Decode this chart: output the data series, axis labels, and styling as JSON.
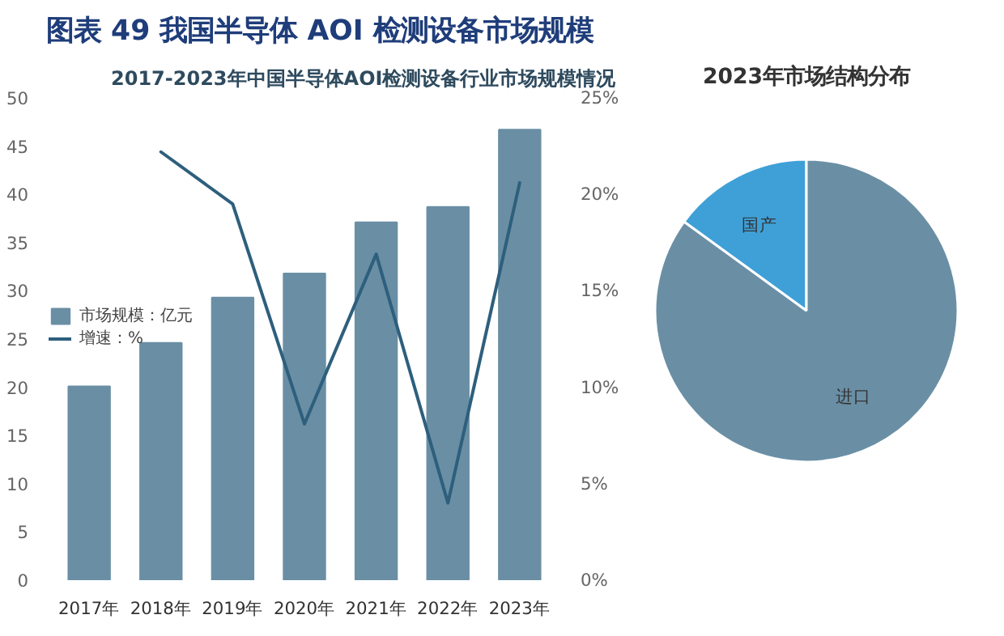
{
  "chart_data": [
    {
      "type": "bar",
      "title": "图表 49 我国半导体 AOI 检测设备市场规模",
      "subtitle": "2017-2023年中国半导体AOI检测设备行业市场规模情况",
      "categories": [
        "2017年",
        "2018年",
        "2019年",
        "2020年",
        "2021年",
        "2022年",
        "2023年"
      ],
      "series": [
        {
          "name": "市场规模：亿元",
          "type": "bar",
          "color": "#6a8fa5",
          "values": [
            20.1,
            24.6,
            29.3,
            31.8,
            37.1,
            38.7,
            46.7
          ]
        },
        {
          "name": "增速：%",
          "type": "line",
          "axis": "y2",
          "color": "#2e5f7d",
          "values": [
            null,
            22.2,
            19.5,
            8.1,
            16.9,
            4.0,
            20.6
          ]
        }
      ],
      "ylim": [
        0,
        50
      ],
      "yticks": [
        0,
        5,
        10,
        15,
        20,
        25,
        30,
        35,
        40,
        45,
        50
      ],
      "y2lim": [
        0,
        25
      ],
      "y2ticks": [
        {
          "value": 0,
          "label": "0%"
        },
        {
          "value": 5,
          "label": "5%"
        },
        {
          "value": 10,
          "label": "10%"
        },
        {
          "value": 15,
          "label": "15%"
        },
        {
          "value": 20,
          "label": "20%"
        },
        {
          "value": 25,
          "label": "25%"
        }
      ],
      "legend": "top left",
      "grid": false
    },
    {
      "type": "pie",
      "title": "2023年市场结构分布",
      "categories": [
        "国产",
        "进口"
      ],
      "values": [
        15,
        85
      ],
      "colors": [
        "#3fa0d8",
        "#6a8fa5"
      ]
    }
  ]
}
